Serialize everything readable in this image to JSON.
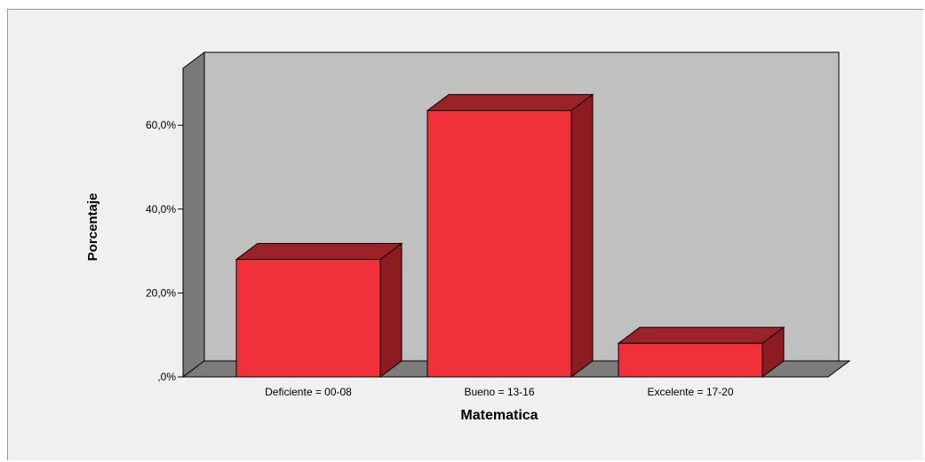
{
  "chart_data": {
    "type": "bar",
    "categories": [
      "Deficiente = 00-08",
      "Bueno = 13-16",
      "Excelente = 17-20"
    ],
    "values": [
      28.0,
      63.5,
      8.0
    ],
    "xlabel": "Matematica",
    "ylabel": "Porcentaje",
    "ylim": [
      0,
      75
    ],
    "yticks": [
      0,
      20,
      40,
      60
    ],
    "ytick_labels": [
      ",0%",
      "20,0%",
      "40,0%",
      "60,0%"
    ],
    "grid": false,
    "style": "3d",
    "colors": {
      "bar_front": "#f0313a",
      "bar_top": "#9b2328",
      "bar_side": "#8c1c22",
      "back_wall": "#c0c0c0",
      "side_wall": "#7a7a7a",
      "floor": "#7c7c7c",
      "background": "#f0f0f0"
    }
  }
}
